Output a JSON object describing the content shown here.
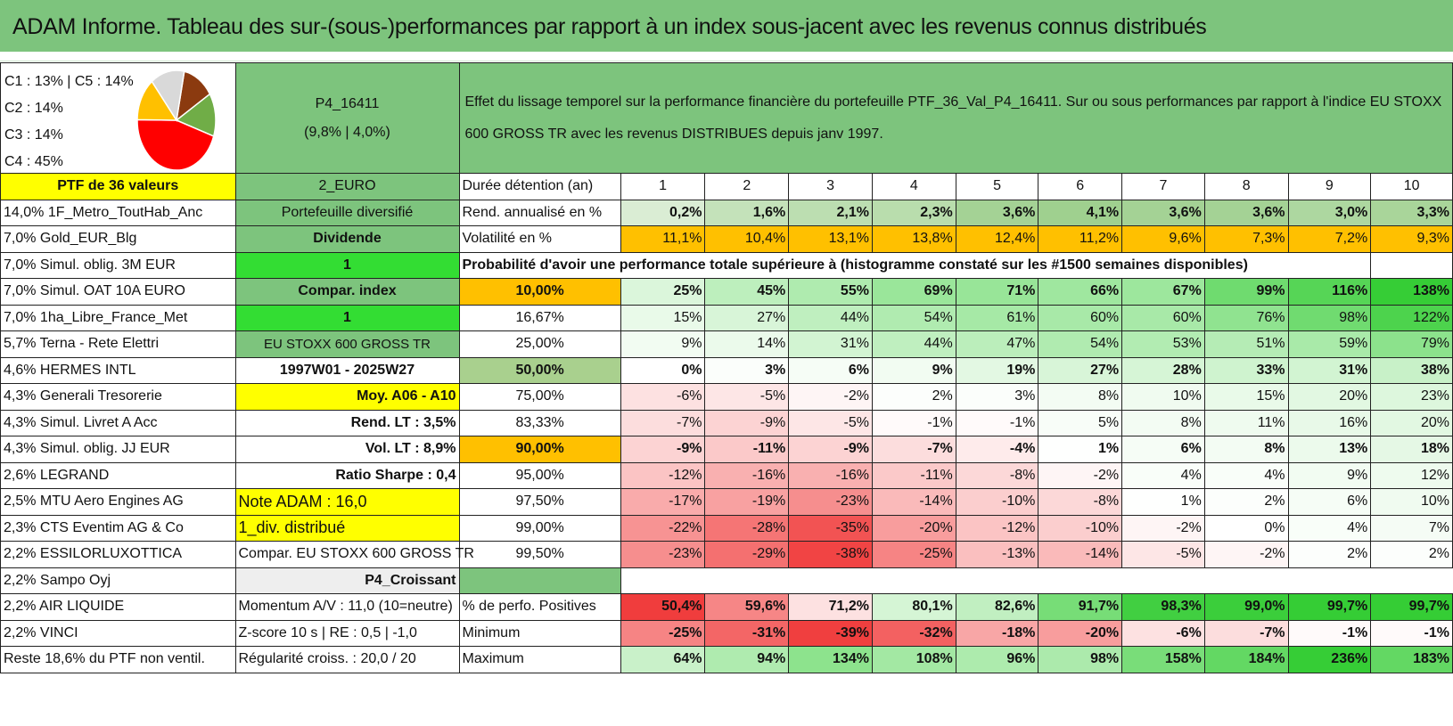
{
  "title": "ADAM Informe. Tableau des sur-(sous-)performances par rapport à un index sous-jacent avec les revenus connus distribués",
  "pie": {
    "legend": [
      "C1 : 13% | C5 : 14%",
      "C2 : 14%",
      "C3 : 14%",
      "C4 : 45%"
    ],
    "slices": [
      {
        "name": "C1",
        "value": 13,
        "color": "#8b3a0f"
      },
      {
        "name": "C2",
        "value": 14,
        "color": "#70ad47"
      },
      {
        "name": "C4",
        "value": 45,
        "color": "#ff0000"
      },
      {
        "name": "C3",
        "value": 14,
        "color": "#ffc000"
      },
      {
        "name": "C5",
        "value": 14,
        "color": "#d9d9d9"
      }
    ]
  },
  "portfolio": {
    "name": "P4_16411",
    "stats": "(9,8% | 4,0%)",
    "description": "Effet du lissage temporel sur la performance financière du portefeuille PTF_36_Val_P4_16411. Sur ou sous performances par rapport à l'indice EU STOXX 600 GROSS TR avec les revenus DISTRIBUES depuis janv 1997."
  },
  "holdings": [
    "PTF de 36 valeurs",
    "14,0% 1F_Metro_ToutHab_Anc",
    "7,0% Gold_EUR_Blg",
    "7,0% Simul. oblig. 3M EUR",
    "7,0% Simul. OAT 10A EURO",
    "7,0% 1ha_Libre_France_Met",
    "5,7% Terna - Rete Elettri",
    "4,6% HERMES INTL",
    "4,3% Generali Tresorerie",
    "4,3% Simul. Livret A Acc",
    "4,3% Simul. oblig. JJ EUR",
    "2,6% LEGRAND",
    "2,5% MTU Aero Engines AG",
    "2,3% CTS Eventim AG & Co",
    "2,2% ESSILORLUXOTTICA",
    "2,2% Sampo Oyj",
    "2,2% AIR LIQUIDE",
    "2,2% VINCI",
    "Reste 18,6% du PTF non ventil."
  ],
  "params": [
    "2_EURO",
    "Portefeuille diversifié",
    "Dividende",
    "1",
    "Compar. index",
    "1",
    "EU STOXX 600 GROSS TR",
    "1997W01 - 2025W27",
    "Moy. A06 - A10",
    "Rend. LT : 3,5%",
    "Vol. LT : 8,9%",
    "Ratio Sharpe : 0,4",
    "Note ADAM : 16,0",
    "1_div. distribué",
    "Compar. EU STOXX 600 GROSS TR",
    "P4_Croissant",
    "Momentum A/V : 11,0 (10=neutre)",
    "Z-score 10 s | RE : 0,5 | -1,0",
    "Régularité croiss. : 20,0 / 20"
  ],
  "header": {
    "label": "Durée détention (an)",
    "years": [
      "1",
      "2",
      "3",
      "4",
      "5",
      "6",
      "7",
      "8",
      "9",
      "10"
    ]
  },
  "rend": {
    "label": "Rend. annualisé en %",
    "values": [
      "0,2%",
      "1,6%",
      "2,1%",
      "2,3%",
      "3,6%",
      "4,1%",
      "3,6%",
      "3,6%",
      "3,0%",
      "3,3%"
    ]
  },
  "vol": {
    "label": "Volatilité en %",
    "values": [
      "11,1%",
      "10,4%",
      "13,1%",
      "13,8%",
      "12,4%",
      "11,2%",
      "9,6%",
      "7,3%",
      "7,2%",
      "9,3%"
    ]
  },
  "prob_title": "Probabilité d'avoir une performance totale supérieure à (histogramme constaté sur les #1500 semaines disponibles)",
  "quantiles": [
    {
      "q": "10,00%",
      "values": [
        "25%",
        "45%",
        "55%",
        "69%",
        "71%",
        "66%",
        "67%",
        "99%",
        "116%",
        "138%"
      ]
    },
    {
      "q": "16,67%",
      "values": [
        "15%",
        "27%",
        "44%",
        "54%",
        "61%",
        "60%",
        "60%",
        "76%",
        "98%",
        "122%"
      ]
    },
    {
      "q": "25,00%",
      "values": [
        "9%",
        "14%",
        "31%",
        "44%",
        "47%",
        "54%",
        "53%",
        "51%",
        "59%",
        "79%"
      ]
    },
    {
      "q": "50,00%",
      "values": [
        "0%",
        "3%",
        "6%",
        "9%",
        "19%",
        "27%",
        "28%",
        "33%",
        "31%",
        "38%"
      ]
    },
    {
      "q": "75,00%",
      "values": [
        "-6%",
        "-5%",
        "-2%",
        "2%",
        "3%",
        "8%",
        "10%",
        "15%",
        "20%",
        "23%"
      ]
    },
    {
      "q": "83,33%",
      "values": [
        "-7%",
        "-9%",
        "-5%",
        "-1%",
        "-1%",
        "5%",
        "8%",
        "11%",
        "16%",
        "20%"
      ]
    },
    {
      "q": "90,00%",
      "values": [
        "-9%",
        "-11%",
        "-9%",
        "-7%",
        "-4%",
        "1%",
        "6%",
        "8%",
        "13%",
        "18%"
      ]
    },
    {
      "q": "95,00%",
      "values": [
        "-12%",
        "-16%",
        "-16%",
        "-11%",
        "-8%",
        "-2%",
        "4%",
        "4%",
        "9%",
        "12%"
      ]
    },
    {
      "q": "97,50%",
      "values": [
        "-17%",
        "-19%",
        "-23%",
        "-14%",
        "-10%",
        "-8%",
        "1%",
        "2%",
        "6%",
        "10%"
      ]
    },
    {
      "q": "99,00%",
      "values": [
        "-22%",
        "-28%",
        "-35%",
        "-20%",
        "-12%",
        "-10%",
        "-2%",
        "0%",
        "4%",
        "7%"
      ]
    },
    {
      "q": "99,50%",
      "values": [
        "-23%",
        "-29%",
        "-38%",
        "-25%",
        "-13%",
        "-14%",
        "-5%",
        "-2%",
        "2%",
        "2%"
      ]
    }
  ],
  "pos": {
    "label": "% de perfo. Positives",
    "values": [
      "50,4%",
      "59,6%",
      "71,2%",
      "80,1%",
      "82,6%",
      "91,7%",
      "98,3%",
      "99,0%",
      "99,7%",
      "99,7%"
    ]
  },
  "min": {
    "label": "Minimum",
    "values": [
      "-25%",
      "-31%",
      "-39%",
      "-32%",
      "-18%",
      "-20%",
      "-6%",
      "-7%",
      "-1%",
      "-1%"
    ]
  },
  "max": {
    "label": "Maximum",
    "values": [
      "64%",
      "94%",
      "134%",
      "108%",
      "96%",
      "98%",
      "158%",
      "184%",
      "236%",
      "183%"
    ]
  }
}
